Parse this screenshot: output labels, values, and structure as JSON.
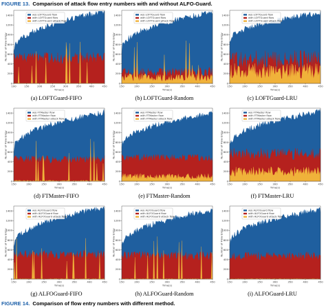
{
  "top_caption": {
    "label": "FIGURE 13.",
    "text": "Comparison of attack flow entry numbers with and without ALFO-Guard."
  },
  "bottom_caption": {
    "label": "FIGURE 14.",
    "text": "Comparison of flow entry numbers with different method."
  },
  "colors": {
    "total": "#1f5f9f",
    "benign": "#b5211e",
    "attack": "#f0b23a"
  },
  "panels": [
    {
      "id": "a",
      "caption": "(a)  LOFTGuard-FIFO",
      "legend": [
        "w/o LOFTGuard flow",
        "with LOFTGuard flow",
        "with LOFTGuard attack flow"
      ],
      "ylabel": "Number of Flow Entry",
      "xlabel": "Time(s)",
      "xlim": [
        100,
        450
      ],
      "xticks": [
        100,
        150,
        200,
        250,
        300,
        350,
        400,
        450
      ],
      "ylim": [
        0,
        1500
      ],
      "yticks": [
        0,
        200,
        400,
        600,
        800,
        1000,
        1200,
        1400
      ],
      "total": {
        "start": 650,
        "end": 1480
      },
      "benign": {
        "avg": 520,
        "var": 120
      },
      "attack": {
        "avg": 0,
        "var": 0,
        "spikes": true
      }
    },
    {
      "id": "b",
      "caption": "(b)  LOFTGuard-Random",
      "legend": [
        "w/o LOFTGuard flow",
        "with LOFTGuard flow",
        "with LOFTGuard attack flow"
      ],
      "ylabel": "Number of Flow Entry",
      "xlabel": "Time(s)",
      "xlim": [
        150,
        450
      ],
      "xticks": [
        150,
        200,
        250,
        300,
        350,
        400,
        450
      ],
      "ylim": [
        0,
        1500
      ],
      "yticks": [
        0,
        200,
        400,
        600,
        800,
        1000,
        1200,
        1400
      ],
      "total": {
        "start": 680,
        "end": 1470
      },
      "benign": {
        "avg": 230,
        "var": 100
      },
      "attack": {
        "avg": 120,
        "var": 80,
        "spikes": true
      }
    },
    {
      "id": "c",
      "caption": "(c)  LOFTGuard-LRU",
      "legend": [
        "w/o LOFTGuard flow",
        "with LOFTGuard flow",
        "with LOFTGuard attack flow"
      ],
      "ylabel": "Number of Flow Entry",
      "xlabel": "Time(s)",
      "xlim": [
        150,
        450
      ],
      "xticks": [
        150,
        200,
        250,
        300,
        350,
        400,
        450
      ],
      "ylim": [
        0,
        1500
      ],
      "yticks": [
        0,
        200,
        400,
        600,
        800,
        1000,
        1200,
        1400
      ],
      "total": {
        "start": 850,
        "end": 1450
      },
      "benign": {
        "avg": 480,
        "var": 200
      },
      "attack": {
        "avg": 250,
        "var": 160,
        "spikes": false
      }
    },
    {
      "id": "d",
      "caption": "(d)  FTMaster-FIFO",
      "legend": [
        "w/o FTMaster flow",
        "with FTMaster flow",
        "with FTMaster attack flow"
      ],
      "ylabel": "Number of Flow Entry",
      "xlabel": "Time(s)",
      "xlim": [
        150,
        450
      ],
      "xticks": [
        150,
        200,
        250,
        300,
        350,
        400,
        450
      ],
      "ylim": [
        0,
        1500
      ],
      "yticks": [
        0,
        200,
        400,
        600,
        800,
        1000,
        1200,
        1400
      ],
      "total": {
        "start": 650,
        "end": 1420
      },
      "benign": {
        "avg": 450,
        "var": 80
      },
      "attack": {
        "avg": 10,
        "var": 10,
        "spikes": true
      }
    },
    {
      "id": "e",
      "caption": "(e)  FTMaster-Random",
      "legend": [
        "w/o FTMaster flow",
        "with FTMaster flow",
        "with FTMaster attack flow"
      ],
      "ylabel": "Number of Flow Entry",
      "xlabel": "Time(s)",
      "xlim": [
        150,
        450
      ],
      "xticks": [
        150,
        200,
        250,
        300,
        350,
        400,
        450
      ],
      "ylim": [
        0,
        1500
      ],
      "yticks": [
        0,
        200,
        400,
        600,
        800,
        1000,
        1200,
        1400
      ],
      "total": {
        "start": 700,
        "end": 1400
      },
      "benign": {
        "avg": 480,
        "var": 80
      },
      "attack": {
        "avg": 100,
        "var": 60,
        "spikes": false
      }
    },
    {
      "id": "f",
      "caption": "(f)  FTMaster-LRU",
      "legend": [
        "w/o FTMaster flow",
        "with FTMaster flow",
        "with FTMaster attack flow"
      ],
      "ylabel": "Number of Flow Entry",
      "xlabel": "Time(s)",
      "xlim": [
        150,
        450
      ],
      "xticks": [
        150,
        200,
        250,
        300,
        350,
        400,
        450
      ],
      "ylim": [
        0,
        1500
      ],
      "yticks": [
        0,
        200,
        400,
        600,
        800,
        1000,
        1200,
        1400
      ],
      "total": {
        "start": 720,
        "end": 1430
      },
      "benign": {
        "avg": 560,
        "var": 120
      },
      "attack": {
        "avg": 200,
        "var": 100,
        "spikes": false
      }
    },
    {
      "id": "g",
      "caption": "(g)  ALFOGuard-FIFO",
      "legend": [
        "w/o ALFOGuard flow",
        "with ALFOGuard flow",
        "with ALFOGuard attack flow"
      ],
      "ylabel": "Number of Flow Entry",
      "xlabel": "Time(s)",
      "xlim": [
        150,
        450
      ],
      "xticks": [
        150,
        200,
        250,
        300,
        350,
        400,
        450
      ],
      "ylim": [
        0,
        1500
      ],
      "yticks": [
        0,
        200,
        400,
        600,
        800,
        1000,
        1200,
        1400
      ],
      "total": {
        "start": 680,
        "end": 1470
      },
      "benign": {
        "avg": 500,
        "var": 100
      },
      "attack": {
        "avg": 5,
        "var": 5,
        "spikes": true
      }
    },
    {
      "id": "h",
      "caption": "(h)  ALFOGuard-Random",
      "legend": [
        "w/o ALFOGuard flow",
        "with ALFOGuard flow",
        "with ALFOGuard attack flow"
      ],
      "ylabel": "Number of Flow Entry",
      "xlabel": "Time(s)",
      "xlim": [
        150,
        450
      ],
      "xticks": [
        150,
        200,
        250,
        300,
        350,
        400,
        450
      ],
      "ylim": [
        0,
        1500
      ],
      "yticks": [
        0,
        200,
        400,
        600,
        800,
        1000,
        1200,
        1400
      ],
      "total": {
        "start": 660,
        "end": 1420
      },
      "benign": {
        "avg": 480,
        "var": 90
      },
      "attack": {
        "avg": 5,
        "var": 5,
        "spikes": true
      }
    },
    {
      "id": "i",
      "caption": "(i)  ALFOGuard-LRU",
      "legend": [
        "w/o ALFOGuard flow",
        "with ALFOGuard flow",
        "with ALFOGuard attack flow"
      ],
      "ylabel": "Number of Flow Entry",
      "xlabel": "Time(s)",
      "xlim": [
        150,
        450
      ],
      "xticks": [
        150,
        200,
        250,
        300,
        350,
        400,
        450
      ],
      "ylim": [
        0,
        1500
      ],
      "yticks": [
        0,
        200,
        400,
        600,
        800,
        1000,
        1200,
        1400
      ],
      "total": {
        "start": 720,
        "end": 1430
      },
      "benign": {
        "avg": 470,
        "var": 90
      },
      "attack": {
        "avg": 5,
        "var": 5,
        "spikes": false
      }
    }
  ]
}
